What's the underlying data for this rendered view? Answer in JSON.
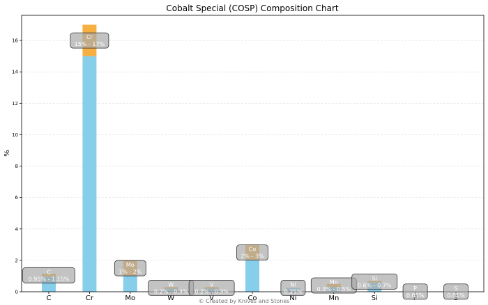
{
  "chart_data": {
    "type": "bar",
    "title": "Cobalt Special (COSP) Composition Chart",
    "xlabel": "",
    "ylabel": "%",
    "ylim": [
      0,
      17.6
    ],
    "yticks": [
      0,
      2,
      4,
      6,
      8,
      10,
      12,
      14,
      16
    ],
    "grid": "horizontal",
    "categories": [
      "C",
      "Cr",
      "Mo",
      "W",
      "V",
      "Co",
      "Ni",
      "Mn",
      "Si",
      "P",
      "S"
    ],
    "series": [
      {
        "role": "min",
        "values": [
          0.95,
          15,
          1,
          0.2,
          0.2,
          2,
          0.25,
          0.3,
          0.6,
          0.01,
          0.01
        ]
      },
      {
        "role": "range",
        "values": [
          0.2,
          2,
          1,
          0.1,
          0.1,
          1,
          0,
          0.2,
          0.1,
          0,
          0
        ]
      }
    ],
    "annotations": [
      {
        "element": "C",
        "text": "0.95% - 1.15%"
      },
      {
        "element": "Cr",
        "text": "15% - 17%"
      },
      {
        "element": "Mo",
        "text": "1% - 2%"
      },
      {
        "element": "W",
        "text": "0.2% - 0.3%"
      },
      {
        "element": "V",
        "text": "0.2% - 0.3%"
      },
      {
        "element": "Co",
        "text": "2% - 3%"
      },
      {
        "element": "Ni",
        "text": "0.25%"
      },
      {
        "element": "Mn",
        "text": "0.3% - 0.5%"
      },
      {
        "element": "Si",
        "text": "0.6% - 0.7%"
      },
      {
        "element": "P",
        "text": "0.01%"
      },
      {
        "element": "S",
        "text": "0.01%"
      }
    ],
    "credit": "© Created by Knives and Stones",
    "colors": {
      "min_bar": "#87ceeb",
      "range_bar": "#f5b041",
      "label_box": "#a9a9a9"
    }
  }
}
